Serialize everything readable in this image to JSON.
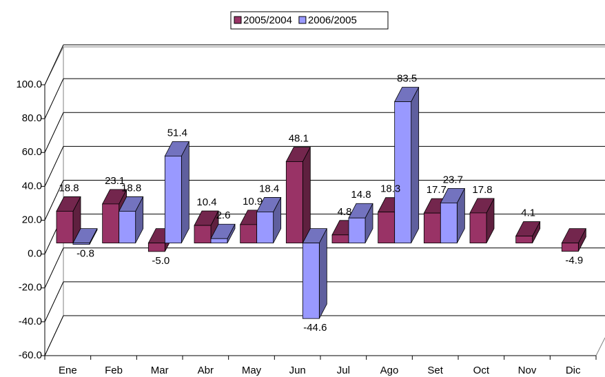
{
  "chart_data": {
    "type": "bar",
    "legend_position": "top",
    "categories": [
      "Ene",
      "Feb",
      "Mar",
      "Abr",
      "May",
      "Jun",
      "Jul",
      "Ago",
      "Set",
      "Oct",
      "Nov",
      "Dic"
    ],
    "series": [
      {
        "name": "2005/2004",
        "color": "#993366",
        "values": [
          18.8,
          23.1,
          -5.0,
          10.4,
          10.9,
          48.1,
          4.8,
          18.3,
          17.7,
          17.8,
          4.1,
          -4.9
        ],
        "value_labels": [
          "18.8",
          "23.1",
          "-5.0",
          "10.4",
          "10.9",
          "48.1",
          "4.8",
          "18.3",
          "17.7",
          "17.8",
          "4.1",
          "-4.9"
        ]
      },
      {
        "name": "2006/2005",
        "color": "#9999ff",
        "values": [
          -0.8,
          18.8,
          51.4,
          2.6,
          18.4,
          -44.6,
          14.8,
          83.5,
          23.7,
          null,
          null,
          null
        ],
        "value_labels": [
          "-0.8",
          "18.8",
          "51.4",
          "2.6",
          "18.4",
          "-44.6",
          "14.8",
          "83.5",
          "23.7",
          null,
          null,
          null
        ]
      }
    ],
    "ylim": [
      -60,
      100
    ],
    "yticks": [
      {
        "value": -60,
        "label": "-60.0"
      },
      {
        "value": -40,
        "label": "-40.0"
      },
      {
        "value": -20,
        "label": "-20.0"
      },
      {
        "value": 0,
        "label": "0.0"
      },
      {
        "value": 20,
        "label": "20.0"
      },
      {
        "value": 40,
        "label": "40.0"
      },
      {
        "value": 60,
        "label": "60.0"
      },
      {
        "value": 80,
        "label": "80.0"
      },
      {
        "value": 100,
        "label": "100.0"
      }
    ],
    "grid": true
  }
}
